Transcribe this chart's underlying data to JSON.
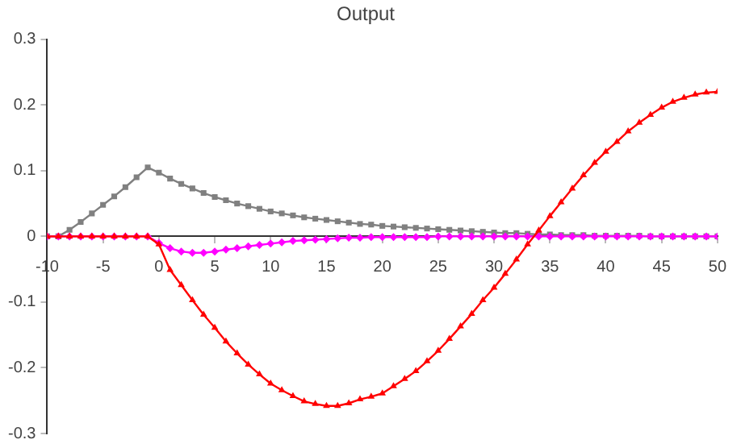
{
  "chart_data": {
    "type": "line",
    "title": "Output",
    "x": [
      -10,
      -9,
      -8,
      -7,
      -6,
      -5,
      -4,
      -3,
      -2,
      -1,
      0,
      1,
      2,
      3,
      4,
      5,
      6,
      7,
      8,
      9,
      10,
      11,
      12,
      13,
      14,
      15,
      16,
      17,
      18,
      19,
      20,
      21,
      22,
      23,
      24,
      25,
      26,
      27,
      28,
      29,
      30,
      31,
      32,
      33,
      34,
      35,
      36,
      37,
      38,
      39,
      40,
      41,
      42,
      43,
      44,
      45,
      46,
      47,
      48,
      49,
      50
    ],
    "xlim": [
      -10,
      50
    ],
    "xticks": [
      -10,
      -5,
      0,
      5,
      10,
      15,
      20,
      25,
      30,
      35,
      40,
      45,
      50
    ],
    "ylim": [
      -0.3,
      0.3
    ],
    "yticks": [
      -0.3,
      -0.2,
      -0.1,
      0,
      0.1,
      0.2,
      0.3
    ],
    "grid": false,
    "legend": false,
    "line_style": "solid",
    "series": [
      {
        "color": "#808080",
        "marker": "square",
        "values": [
          0,
          0,
          0.01,
          0.022,
          0.035,
          0.048,
          0.061,
          0.075,
          0.09,
          0.105,
          0.097,
          0.088,
          0.08,
          0.073,
          0.066,
          0.06,
          0.055,
          0.05,
          0.046,
          0.042,
          0.038,
          0.035,
          0.032,
          0.029,
          0.027,
          0.025,
          0.023,
          0.021,
          0.019,
          0.018,
          0.016,
          0.015,
          0.014,
          0.013,
          0.012,
          0.011,
          0.01,
          0.009,
          0.008,
          0.007,
          0.006,
          0.005,
          0.005,
          0.004,
          0.003,
          0.003,
          0.002,
          0.002,
          0.002,
          0.001,
          0.001,
          0.001,
          0.001,
          0.001,
          0,
          0,
          0,
          0,
          0,
          0,
          0
        ]
      },
      {
        "color": "#ff00ff",
        "marker": "diamond",
        "values": [
          0,
          0,
          0,
          0,
          0,
          0,
          0,
          0,
          0,
          0,
          -0.01,
          -0.018,
          -0.023,
          -0.025,
          -0.025,
          -0.023,
          -0.02,
          -0.018,
          -0.015,
          -0.013,
          -0.011,
          -0.009,
          -0.007,
          -0.006,
          -0.005,
          -0.004,
          -0.003,
          -0.002,
          -0.002,
          -0.001,
          -0.001,
          -0.001,
          -0.001,
          -0.001,
          -0.001,
          0,
          0,
          0,
          0,
          0,
          0,
          0,
          0,
          0,
          0,
          0,
          0,
          0,
          0,
          0,
          0,
          0,
          0,
          0,
          0,
          0,
          0,
          0,
          0,
          0,
          0
        ]
      },
      {
        "color": "#ff0000",
        "marker": "triangle",
        "values": [
          0,
          0,
          0,
          0,
          0,
          0,
          0,
          0,
          0,
          0,
          -0.012,
          -0.051,
          -0.074,
          -0.097,
          -0.119,
          -0.139,
          -0.16,
          -0.178,
          -0.195,
          -0.21,
          -0.224,
          -0.234,
          -0.243,
          -0.251,
          -0.255,
          -0.258,
          -0.258,
          -0.254,
          -0.248,
          -0.244,
          -0.239,
          -0.228,
          -0.217,
          -0.205,
          -0.19,
          -0.174,
          -0.156,
          -0.137,
          -0.118,
          -0.097,
          -0.078,
          -0.057,
          -0.035,
          -0.012,
          0.009,
          0.031,
          0.052,
          0.073,
          0.093,
          0.112,
          0.129,
          0.144,
          0.16,
          0.173,
          0.185,
          0.196,
          0.205,
          0.211,
          0.216,
          0.219,
          0.22
        ]
      }
    ]
  }
}
